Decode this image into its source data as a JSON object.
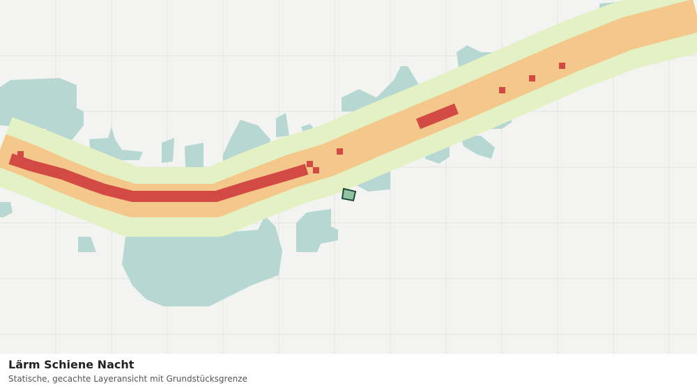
{
  "header": {
    "title": "Lärm Schiene Nacht",
    "subtitle": "Statische, gecachte Layeransicht mit Grundstücksgrenze"
  }
}
